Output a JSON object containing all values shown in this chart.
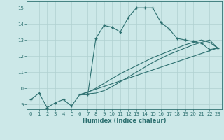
{
  "xlabel": "Humidex (Indice chaleur)",
  "ylabel": "",
  "xlim": [
    -0.5,
    23.5
  ],
  "ylim": [
    8.7,
    15.4
  ],
  "xticks": [
    0,
    1,
    2,
    3,
    4,
    5,
    6,
    7,
    8,
    9,
    10,
    11,
    12,
    13,
    14,
    15,
    16,
    17,
    18,
    19,
    20,
    21,
    22,
    23
  ],
  "yticks": [
    9,
    10,
    11,
    12,
    13,
    14,
    15
  ],
  "bg_color": "#cce8e8",
  "line_color": "#2d7070",
  "grid_color": "#b0d0d0",
  "curves": [
    {
      "x": [
        0,
        1,
        2,
        3,
        4,
        5,
        6,
        7,
        8,
        9,
        10,
        11,
        12,
        13,
        14,
        15,
        16,
        17,
        18,
        19,
        20,
        21,
        22,
        23
      ],
      "y": [
        9.3,
        9.7,
        8.8,
        9.1,
        9.3,
        8.9,
        9.6,
        9.6,
        13.1,
        13.9,
        13.8,
        13.5,
        14.4,
        15.0,
        15.0,
        15.0,
        14.1,
        13.7,
        13.1,
        13.0,
        12.9,
        12.8,
        12.4,
        12.5
      ],
      "has_marker": true
    },
    {
      "x": [
        6,
        7,
        8,
        9,
        10,
        11,
        12,
        13,
        14,
        15,
        16,
        17,
        18,
        19,
        20,
        21,
        22,
        23
      ],
      "y": [
        9.6,
        9.65,
        9.7,
        9.85,
        10.1,
        10.4,
        10.7,
        11.0,
        11.3,
        11.6,
        11.85,
        12.1,
        12.3,
        12.5,
        12.7,
        12.85,
        13.0,
        12.5
      ],
      "has_marker": false
    },
    {
      "x": [
        6,
        23
      ],
      "y": [
        9.6,
        12.5
      ],
      "has_marker": false
    },
    {
      "x": [
        6,
        7,
        8,
        9,
        10,
        11,
        12,
        13,
        14,
        15,
        16,
        17,
        18,
        19,
        20,
        21,
        22,
        23
      ],
      "y": [
        9.6,
        9.75,
        10.0,
        10.3,
        10.6,
        10.9,
        11.15,
        11.4,
        11.65,
        11.9,
        12.1,
        12.3,
        12.5,
        12.7,
        12.85,
        13.0,
        12.85,
        12.5
      ],
      "has_marker": false
    }
  ],
  "tick_fontsize": 5.0,
  "xlabel_fontsize": 6.0,
  "marker_size": 3.5,
  "linewidth": 0.8
}
